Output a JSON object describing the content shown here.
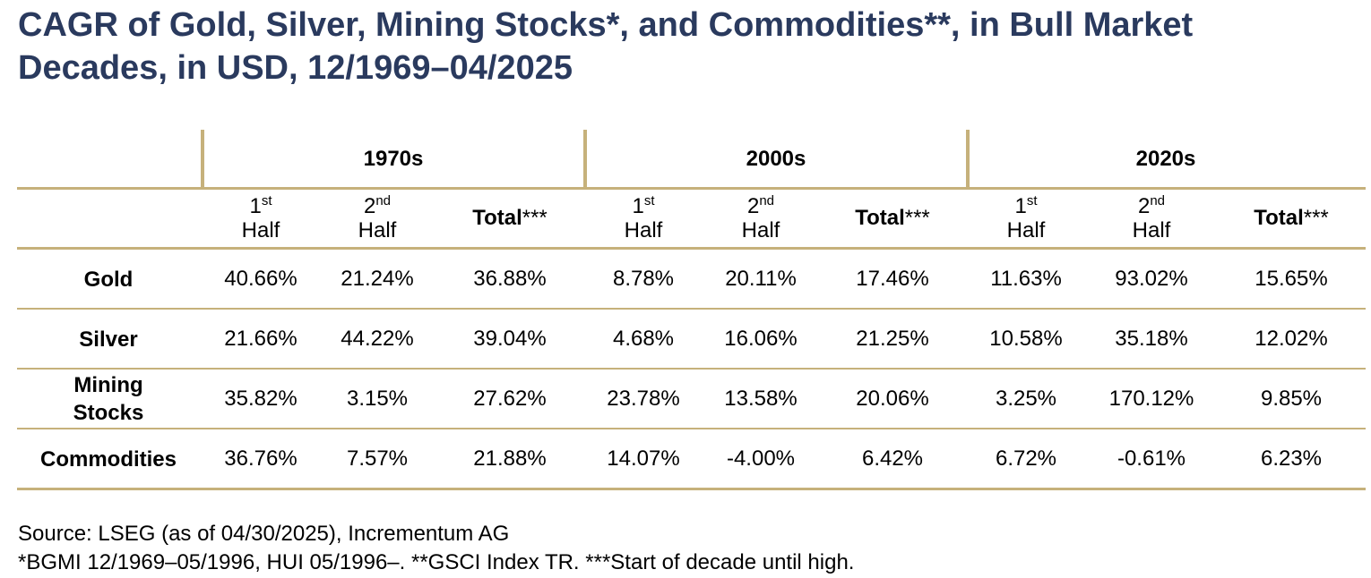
{
  "title": {
    "line1": "CAGR of Gold, Silver, Mining Stocks*, and Commodities**, in Bull Market",
    "line2": "Decades, in USD, 12/1969–04/2025"
  },
  "table": {
    "groups": [
      "1970s",
      "2000s",
      "2020s"
    ],
    "subheaders": {
      "first_num": "1",
      "first_sup": "st",
      "first_word": "Half",
      "second_num": "2",
      "second_sup": "nd",
      "second_word": "Half",
      "total_word": "Total",
      "total_suffix": "***"
    },
    "rows": [
      {
        "label": [
          "Gold"
        ],
        "values": [
          "40.66%",
          "21.24%",
          "36.88%",
          "8.78%",
          "20.11%",
          "17.46%",
          "11.63%",
          "93.02%",
          "15.65%"
        ]
      },
      {
        "label": [
          "Silver"
        ],
        "values": [
          "21.66%",
          "44.22%",
          "39.04%",
          "4.68%",
          "16.06%",
          "21.25%",
          "10.58%",
          "35.18%",
          "12.02%"
        ]
      },
      {
        "label": [
          "Mining",
          "Stocks"
        ],
        "values": [
          "35.82%",
          "3.15%",
          "27.62%",
          "23.78%",
          "13.58%",
          "20.06%",
          "3.25%",
          "170.12%",
          "9.85%"
        ]
      },
      {
        "label": [
          "Commodities"
        ],
        "values": [
          "36.76%",
          "7.57%",
          "21.88%",
          "14.07%",
          "-4.00%",
          "6.42%",
          "6.72%",
          "-0.61%",
          "6.23%"
        ]
      }
    ]
  },
  "footer": {
    "source": "Source: LSEG (as of 04/30/2025), Incrementum AG",
    "note": "*BGMI 12/1969–05/1996, HUI 05/1996–. **GSCI Index TR. ***Start of decade until high."
  },
  "colors": {
    "title": "#2a3a5e",
    "rule": "#c6b17b"
  }
}
